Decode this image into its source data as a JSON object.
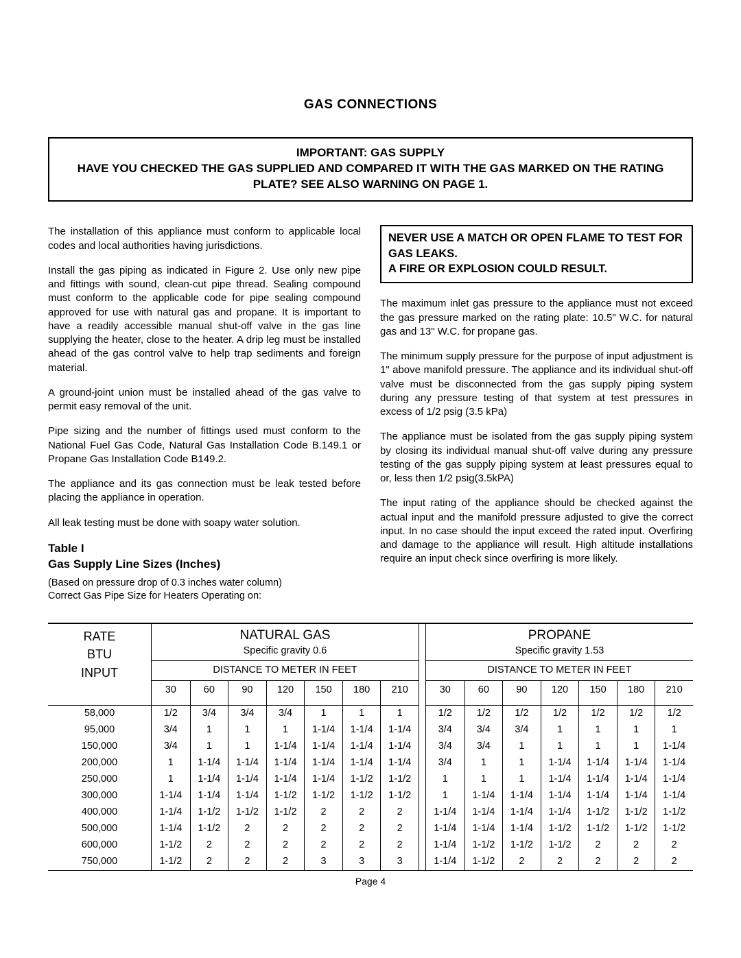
{
  "title": "GAS CONNECTIONS",
  "important_box": {
    "line1": "IMPORTANT: GAS SUPPLY",
    "line2": "HAVE YOU CHECKED THE GAS SUPPLIED AND COMPARED IT WITH THE GAS MARKED ON THE RATING PLATE? SEE ALSO WARNING ON PAGE 1."
  },
  "left_col": {
    "p1": "The installation of this appliance must conform to applicable local codes and local authorities having jurisdictions.",
    "p2": "Install the gas piping as indicated in Figure 2. Use only new pipe and fittings with sound, clean-cut pipe thread. Sealing compound must conform to the applicable code for pipe sealing compound approved for use with natural gas and propane. It is important to have a readily accessible manual shut-off valve in the gas line supplying the heater, close to the heater. A drip leg must be installed ahead of the gas control valve to help trap sediments and foreign material.",
    "p3": "A ground-joint union must be installed ahead of the gas valve to permit easy removal of the unit.",
    "p4": "Pipe sizing and the number of fittings used must conform to the National Fuel Gas Code, Natural Gas Installation Code B.149.1 or Propane Gas Installation Code B149.2.",
    "p5": "The appliance and its gas connection must be leak tested before placing the appliance in operation.",
    "p6": "All leak testing must be done with soapy water solution."
  },
  "table_heading": {
    "t1": "Table I",
    "t2": "Gas Supply Line Sizes (Inches)",
    "note1": "(Based on pressure drop of 0.3 inches water column)",
    "note2": "Correct Gas Pipe Size for Heaters Operating on:"
  },
  "warn_box": {
    "l1": "NEVER USE A MATCH OR OPEN FLAME TO TEST FOR GAS LEAKS.",
    "l2": "A FIRE OR EXPLOSION COULD RESULT."
  },
  "right_col": {
    "p1": "The maximum inlet gas pressure to the appliance must not exceed the gas pressure marked on the rating plate: 10.5\" W.C. for natural gas and 13\" W.C. for propane gas.",
    "p2": "The minimum supply pressure for the purpose of input adjustment is 1\" above manifold pressure. The appliance and its individual shut-off valve must be disconnected from the gas supply piping system during any pressure testing of that system at test pressures in excess of 1/2 psig (3.5 kPa)",
    "p3": "The appliance must be isolated from the gas supply piping system by closing its individual manual shut-off valve during any pressure testing of the gas supply piping system at least pressures equal to or, less then 1/2 psig(3.5kPA)",
    "p4": "The input rating of the appliance should be checked against the actual input and the manifold pressure adjusted to give the correct input. In no case should the input exceed the rated input. Overfiring and damage to the appliance will result. High altitude installations require an input check since overfiring is more likely."
  },
  "table": {
    "rate_label_1": "RATE",
    "rate_label_2": "BTU",
    "rate_label_3": "INPUT",
    "nat": {
      "title": "NATURAL GAS",
      "sub": "Specific gravity 0.6",
      "dist": "DISTANCE TO METER IN FEET"
    },
    "pro": {
      "title": "PROPANE",
      "sub": "Specific gravity 1.53",
      "dist": "DISTANCE TO METER IN FEET"
    },
    "distances": [
      "30",
      "60",
      "90",
      "120",
      "150",
      "180",
      "210"
    ],
    "rates": [
      "58,000",
      "95,000",
      "150,000",
      "200,000",
      "250,000",
      "300,000",
      "400,000",
      "500,000",
      "600,000",
      "750,000"
    ],
    "nat_rows": [
      [
        "1/2",
        "3/4",
        "3/4",
        "3/4",
        "1",
        "1",
        "1"
      ],
      [
        "3/4",
        "1",
        "1",
        "1",
        "1-1/4",
        "1-1/4",
        "1-1/4"
      ],
      [
        "3/4",
        "1",
        "1",
        "1-1/4",
        "1-1/4",
        "1-1/4",
        "1-1/4"
      ],
      [
        "1",
        "1-1/4",
        "1-1/4",
        "1-1/4",
        "1-1/4",
        "1-1/4",
        "1-1/4"
      ],
      [
        "1",
        "1-1/4",
        "1-1/4",
        "1-1/4",
        "1-1/4",
        "1-1/2",
        "1-1/2"
      ],
      [
        "1-1/4",
        "1-1/4",
        "1-1/4",
        "1-1/2",
        "1-1/2",
        "1-1/2",
        "1-1/2"
      ],
      [
        "1-1/4",
        "1-1/2",
        "1-1/2",
        "1-1/2",
        "2",
        "2",
        "2"
      ],
      [
        "1-1/4",
        "1-1/2",
        "2",
        "2",
        "2",
        "2",
        "2"
      ],
      [
        "1-1/2",
        "2",
        "2",
        "2",
        "2",
        "2",
        "2"
      ],
      [
        "1-1/2",
        "2",
        "2",
        "2",
        "3",
        "3",
        "3"
      ]
    ],
    "pro_rows": [
      [
        "1/2",
        "1/2",
        "1/2",
        "1/2",
        "1/2",
        "1/2",
        "1/2"
      ],
      [
        "3/4",
        "3/4",
        "3/4",
        "1",
        "1",
        "1",
        "1"
      ],
      [
        "3/4",
        "3/4",
        "1",
        "1",
        "1",
        "1",
        "1-1/4"
      ],
      [
        "3/4",
        "1",
        "1",
        "1-1/4",
        "1-1/4",
        "1-1/4",
        "1-1/4"
      ],
      [
        "1",
        "1",
        "1",
        "1-1/4",
        "1-1/4",
        "1-1/4",
        "1-1/4"
      ],
      [
        "1",
        "1-1/4",
        "1-1/4",
        "1-1/4",
        "1-1/4",
        "1-1/4",
        "1-1/4"
      ],
      [
        "1-1/4",
        "1-1/4",
        "1-1/4",
        "1-1/4",
        "1-1/2",
        "1-1/2",
        "1-1/2"
      ],
      [
        "1-1/4",
        "1-1/4",
        "1-1/4",
        "1-1/2",
        "1-1/2",
        "1-1/2",
        "1-1/2"
      ],
      [
        "1-1/4",
        "1-1/2",
        "1-1/2",
        "1-1/2",
        "2",
        "2",
        "2"
      ],
      [
        "1-1/4",
        "1-1/2",
        "2",
        "2",
        "2",
        "2",
        "2"
      ]
    ]
  },
  "page_num": "Page 4"
}
